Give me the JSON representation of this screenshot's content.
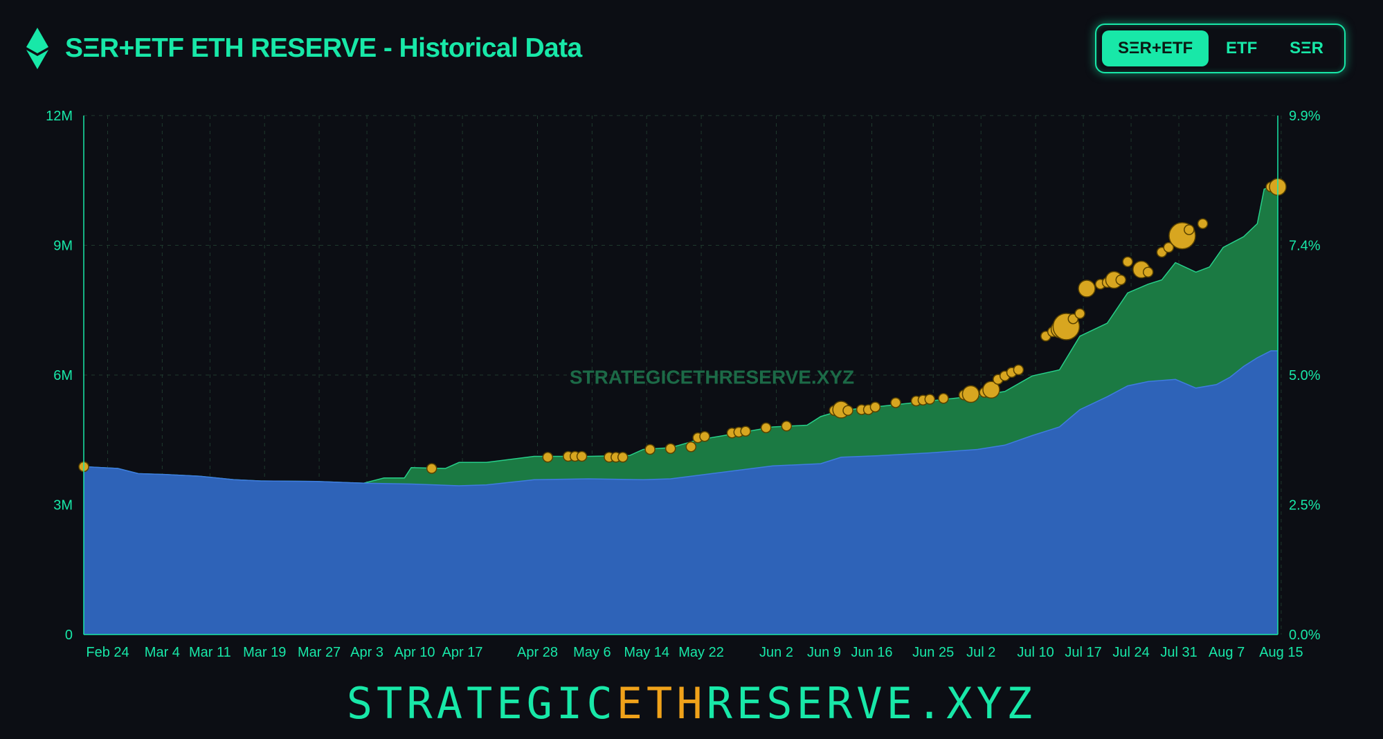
{
  "header": {
    "title": "SΞR+ETF ETH RESERVE - Historical Data"
  },
  "toggle": {
    "options": [
      "SΞR+ETF",
      "ETF",
      "SΞR"
    ],
    "active": "SΞR+ETF"
  },
  "footer": {
    "brand_part1": "STRATEGIC",
    "brand_part2": "ETH",
    "brand_part3": "RESERVE.XYZ"
  },
  "colors": {
    "accent": "#18e8a8",
    "etf_area": "#2e63b8",
    "ser_area": "#1b7a43",
    "marker": "#d8a620",
    "brand_highlight": "#f0a21a"
  },
  "chart_data": {
    "type": "area",
    "watermark": "STRATEGICETHRESERVE.XYZ",
    "x_tick_labels": [
      "Feb 24",
      "Mar 4",
      "Mar 11",
      "Mar 19",
      "Mar 27",
      "Apr 3",
      "Apr 10",
      "Apr 17",
      "Apr 28",
      "May 6",
      "May 14",
      "May 22",
      "Jun 2",
      "Jun 9",
      "Jun 16",
      "Jun 25",
      "Jul 2",
      "Jul 10",
      "Jul 17",
      "Jul 24",
      "Jul 31",
      "Aug 7",
      "Aug 15"
    ],
    "y_left_ticks": [
      "0",
      "3M",
      "6M",
      "9M",
      "12M"
    ],
    "y_left_range": [
      0,
      12000000
    ],
    "y_right_ticks": [
      "0.0%",
      "2.5%",
      "5.0%",
      "7.4%",
      "9.9%"
    ],
    "y_right_range": [
      0,
      9.9
    ],
    "grid": true,
    "x_start": "2025-02-21",
    "x_end": "2025-08-15",
    "series": [
      {
        "kind": "etf",
        "points": [
          [
            "2025-02-21",
            3.88
          ],
          [
            "2025-02-26",
            3.84
          ],
          [
            "2025-03-01",
            3.72
          ],
          [
            "2025-03-05",
            3.7
          ],
          [
            "2025-03-10",
            3.66
          ],
          [
            "2025-03-15",
            3.58
          ],
          [
            "2025-03-19",
            3.55
          ],
          [
            "2025-03-27",
            3.54
          ],
          [
            "2025-04-03",
            3.5
          ],
          [
            "2025-04-10",
            3.48
          ],
          [
            "2025-04-17",
            3.44
          ],
          [
            "2025-04-21",
            3.46
          ],
          [
            "2025-04-28",
            3.58
          ],
          [
            "2025-05-06",
            3.6
          ],
          [
            "2025-05-14",
            3.58
          ],
          [
            "2025-05-18",
            3.6
          ],
          [
            "2025-05-22",
            3.68
          ],
          [
            "2025-05-28",
            3.8
          ],
          [
            "2025-06-02",
            3.9
          ],
          [
            "2025-06-09",
            3.95
          ],
          [
            "2025-06-12",
            4.1
          ],
          [
            "2025-06-18",
            4.14
          ],
          [
            "2025-06-25",
            4.2
          ],
          [
            "2025-07-02",
            4.28
          ],
          [
            "2025-07-06",
            4.38
          ],
          [
            "2025-07-10",
            4.6
          ],
          [
            "2025-07-14",
            4.8
          ],
          [
            "2025-07-17",
            5.2
          ],
          [
            "2025-07-21",
            5.5
          ],
          [
            "2025-07-24",
            5.75
          ],
          [
            "2025-07-27",
            5.85
          ],
          [
            "2025-07-31",
            5.9
          ],
          [
            "2025-08-03",
            5.7
          ],
          [
            "2025-08-06",
            5.78
          ],
          [
            "2025-08-08",
            5.95
          ],
          [
            "2025-08-10",
            6.2
          ],
          [
            "2025-08-12",
            6.4
          ],
          [
            "2025-08-14",
            6.56
          ],
          [
            "2025-08-15",
            6.56
          ]
        ]
      },
      {
        "kind": "total",
        "points": [
          [
            "2025-02-21",
            3.88
          ],
          [
            "2025-02-26",
            3.84
          ],
          [
            "2025-03-01",
            3.72
          ],
          [
            "2025-03-05",
            3.7
          ],
          [
            "2025-03-10",
            3.66
          ],
          [
            "2025-03-15",
            3.58
          ],
          [
            "2025-03-19",
            3.55
          ],
          [
            "2025-03-27",
            3.54
          ],
          [
            "2025-04-03",
            3.5
          ],
          [
            "2025-04-06",
            3.62
          ],
          [
            "2025-04-09",
            3.62
          ],
          [
            "2025-04-10",
            3.86
          ],
          [
            "2025-04-15",
            3.84
          ],
          [
            "2025-04-17",
            3.98
          ],
          [
            "2025-04-21",
            3.98
          ],
          [
            "2025-04-28",
            4.12
          ],
          [
            "2025-05-06",
            4.12
          ],
          [
            "2025-05-12",
            4.14
          ],
          [
            "2025-05-14",
            4.28
          ],
          [
            "2025-05-18",
            4.32
          ],
          [
            "2025-05-22",
            4.5
          ],
          [
            "2025-05-28",
            4.66
          ],
          [
            "2025-06-02",
            4.8
          ],
          [
            "2025-06-07",
            4.84
          ],
          [
            "2025-06-09",
            5.04
          ],
          [
            "2025-06-12",
            5.18
          ],
          [
            "2025-06-18",
            5.28
          ],
          [
            "2025-06-25",
            5.4
          ],
          [
            "2025-07-02",
            5.52
          ],
          [
            "2025-07-06",
            5.62
          ],
          [
            "2025-07-10",
            5.98
          ],
          [
            "2025-07-14",
            6.12
          ],
          [
            "2025-07-17",
            6.9
          ],
          [
            "2025-07-21",
            7.2
          ],
          [
            "2025-07-24",
            7.9
          ],
          [
            "2025-07-27",
            8.1
          ],
          [
            "2025-07-29",
            8.2
          ],
          [
            "2025-07-31",
            8.6
          ],
          [
            "2025-08-03",
            8.38
          ],
          [
            "2025-08-05",
            8.5
          ],
          [
            "2025-08-07",
            8.95
          ],
          [
            "2025-08-10",
            9.2
          ],
          [
            "2025-08-12",
            9.5
          ],
          [
            "2025-08-13",
            10.3
          ],
          [
            "2025-08-14",
            10.35
          ],
          [
            "2025-08-15",
            10.35
          ]
        ]
      }
    ],
    "markers": [
      [
        "2025-02-21",
        3.88,
        1
      ],
      [
        "2025-04-13",
        3.84,
        1
      ],
      [
        "2025-04-30",
        4.1,
        1
      ],
      [
        "2025-05-03",
        4.12,
        1
      ],
      [
        "2025-05-04",
        4.12,
        1
      ],
      [
        "2025-05-05",
        4.12,
        1
      ],
      [
        "2025-05-09",
        4.1,
        1
      ],
      [
        "2025-05-10",
        4.1,
        1
      ],
      [
        "2025-05-11",
        4.1,
        1
      ],
      [
        "2025-05-15",
        4.28,
        1
      ],
      [
        "2025-05-18",
        4.3,
        1
      ],
      [
        "2025-05-21",
        4.34,
        1
      ],
      [
        "2025-05-22",
        4.55,
        1
      ],
      [
        "2025-05-23",
        4.58,
        1
      ],
      [
        "2025-05-27",
        4.66,
        1
      ],
      [
        "2025-05-28",
        4.68,
        1
      ],
      [
        "2025-05-29",
        4.7,
        1
      ],
      [
        "2025-06-01",
        4.78,
        1
      ],
      [
        "2025-06-04",
        4.82,
        1
      ],
      [
        "2025-06-11",
        5.18,
        1
      ],
      [
        "2025-06-12",
        5.2,
        2
      ],
      [
        "2025-06-13",
        5.18,
        1
      ],
      [
        "2025-06-15",
        5.2,
        1
      ],
      [
        "2025-06-16",
        5.2,
        1
      ],
      [
        "2025-06-17",
        5.26,
        1
      ],
      [
        "2025-06-20",
        5.36,
        1
      ],
      [
        "2025-06-23",
        5.4,
        1
      ],
      [
        "2025-06-24",
        5.42,
        1
      ],
      [
        "2025-06-25",
        5.44,
        1
      ],
      [
        "2025-06-27",
        5.46,
        1
      ],
      [
        "2025-06-30",
        5.54,
        1
      ],
      [
        "2025-07-01",
        5.56,
        2
      ],
      [
        "2025-07-03",
        5.6,
        1
      ],
      [
        "2025-07-04",
        5.66,
        2
      ],
      [
        "2025-07-05",
        5.9,
        1
      ],
      [
        "2025-07-06",
        5.98,
        1
      ],
      [
        "2025-07-07",
        6.06,
        1
      ],
      [
        "2025-07-08",
        6.12,
        1
      ],
      [
        "2025-07-12",
        6.9,
        1
      ],
      [
        "2025-07-13",
        7.0,
        1
      ],
      [
        "2025-07-14",
        7.06,
        2
      ],
      [
        "2025-07-15",
        7.12,
        3
      ],
      [
        "2025-07-16",
        7.3,
        1
      ],
      [
        "2025-07-17",
        7.42,
        1
      ],
      [
        "2025-07-18",
        8.0,
        2
      ],
      [
        "2025-07-20",
        8.1,
        1
      ],
      [
        "2025-07-21",
        8.14,
        1
      ],
      [
        "2025-07-22",
        8.2,
        2
      ],
      [
        "2025-07-23",
        8.2,
        1
      ],
      [
        "2025-07-24",
        8.62,
        1
      ],
      [
        "2025-07-26",
        8.44,
        2
      ],
      [
        "2025-07-27",
        8.38,
        1
      ],
      [
        "2025-07-29",
        8.84,
        1
      ],
      [
        "2025-07-30",
        8.95,
        1
      ],
      [
        "2025-07-31",
        9.1,
        1
      ],
      [
        "2025-08-01",
        9.22,
        3
      ],
      [
        "2025-08-02",
        9.36,
        1
      ],
      [
        "2025-08-04",
        9.5,
        1
      ],
      [
        "2025-08-14",
        10.35,
        1
      ],
      [
        "2025-08-15",
        10.35,
        2
      ]
    ]
  }
}
